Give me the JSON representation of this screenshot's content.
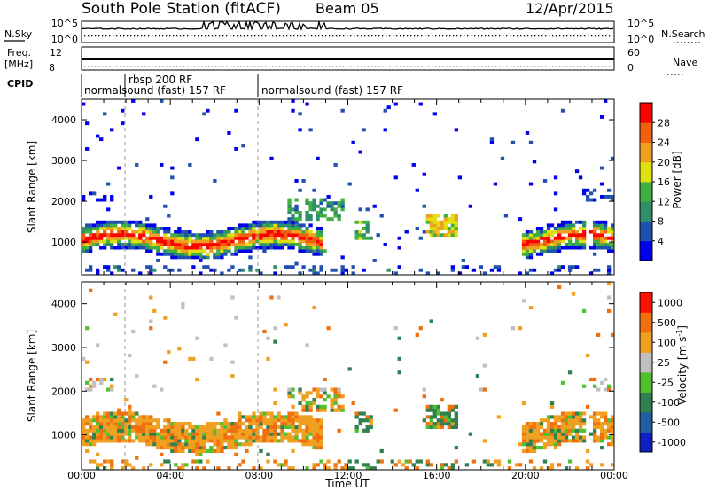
{
  "header": {
    "station": "South Pole Station (fitACF)",
    "beam": "Beam 05",
    "date": "12/Apr/2015"
  },
  "status_panels": {
    "nsky": {
      "label": "N.Sky",
      "left_ticks": [
        "10^5",
        "10^0"
      ]
    },
    "nsearch": {
      "label": "N.Search",
      "right_ticks": [
        "10^5",
        "10^0"
      ]
    },
    "freq": {
      "label_line1": "Freq.",
      "label_line2": "[MHz]",
      "left_ticks": [
        "12",
        "8"
      ]
    },
    "nave": {
      "label": "Nave",
      "right_ticks": [
        "60",
        "0"
      ]
    },
    "cpid": {
      "label": "CPID",
      "segments": [
        {
          "text": "normalsound (fast) 157 RF",
          "start_hour": 0
        },
        {
          "text": "rbsp 200 RF",
          "start_hour": 1.9
        },
        {
          "text": "normalsound (fast) 157 RF",
          "start_hour": 8.0
        }
      ]
    }
  },
  "chart_data": [
    {
      "type": "heatmap",
      "name": "power",
      "ylabel": "Slant Range [km]",
      "xlim": [
        0,
        24
      ],
      "ylim": [
        200,
        4500
      ],
      "yticks": [
        "1000",
        "2000",
        "3000",
        "4000"
      ],
      "colorbar": {
        "label": "Power [dB]",
        "tick_labels": [
          "4",
          "8",
          "12",
          "16",
          "20",
          "24",
          "28"
        ],
        "colors": [
          "#0000ee",
          "#2050b0",
          "#2f8f6a",
          "#40b040",
          "#e0e010",
          "#f0a020",
          "#f06010",
          "#ff0000"
        ]
      }
    },
    {
      "type": "heatmap",
      "name": "velocity",
      "ylabel": "Slant Range [km]",
      "xlabel": "Time UT",
      "xlim": [
        0,
        24
      ],
      "ylim": [
        200,
        4500
      ],
      "yticks": [
        "1000",
        "2000",
        "3000",
        "4000"
      ],
      "xticks": [
        "00:00",
        "04:00",
        "08:00",
        "12:00",
        "16:00",
        "20:00",
        "00:00"
      ],
      "colorbar": {
        "label": "Velocity [m s-1]",
        "tick_labels": [
          "1000",
          "500",
          "100",
          "25",
          "-25",
          "-100",
          "-500",
          "-1000"
        ],
        "colors": [
          "#1020c0",
          "#2060a0",
          "#308050",
          "#50c030",
          "#c0c0c0",
          "#f0a020",
          "#f07010",
          "#ff1000"
        ]
      }
    }
  ]
}
